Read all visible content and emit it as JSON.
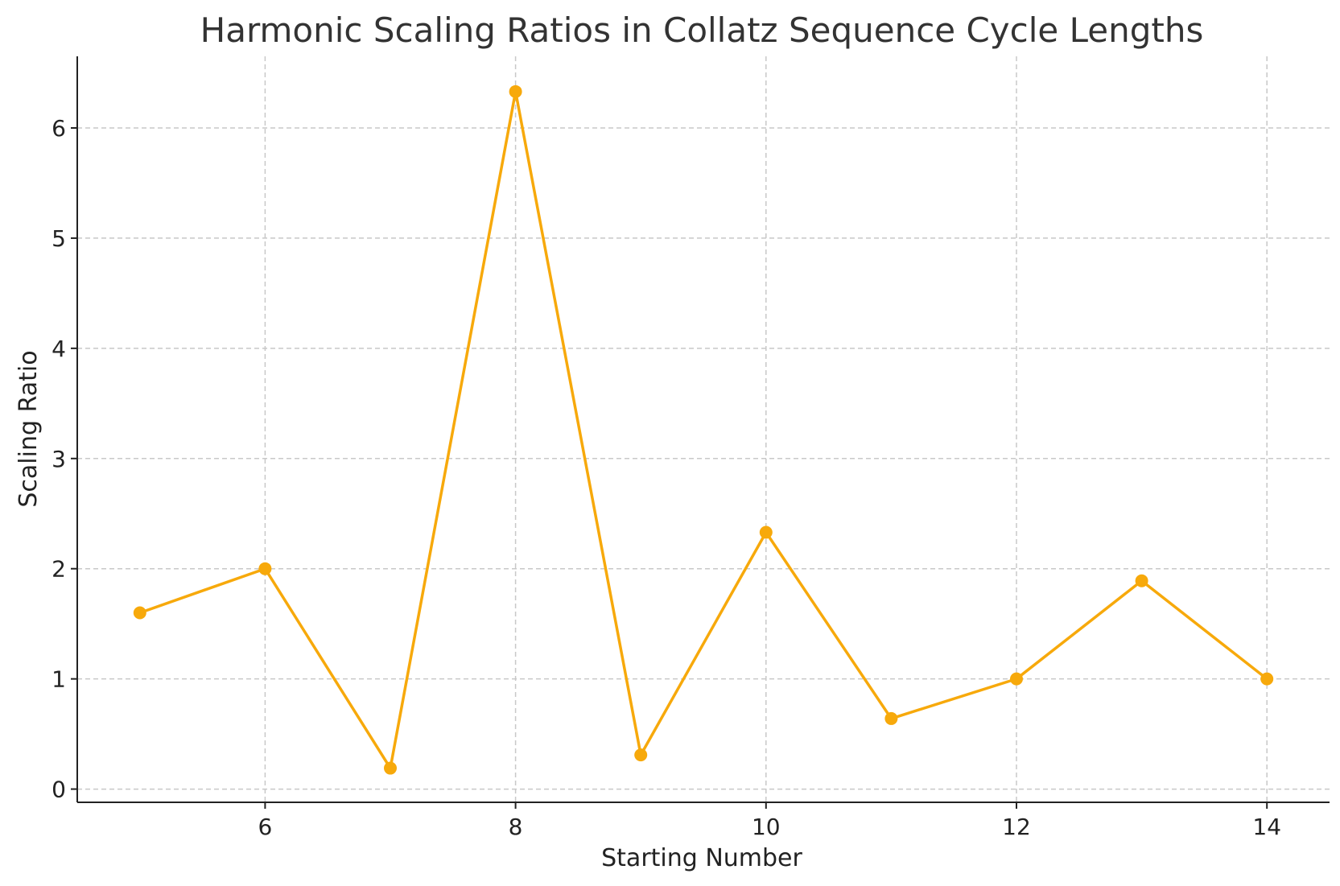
{
  "chart_data": {
    "type": "line",
    "title": "Harmonic Scaling Ratios in Collatz Sequence Cycle Lengths",
    "xlabel": "Starting Number",
    "ylabel": "Scaling Ratio",
    "x": [
      5,
      6,
      7,
      8,
      9,
      10,
      11,
      12,
      13,
      14
    ],
    "series": [
      {
        "values": [
          1.6,
          2.0,
          0.19,
          6.33,
          0.31,
          2.33,
          0.64,
          1.0,
          1.89,
          1.0
        ],
        "color": "#f7a90b"
      }
    ],
    "xlim": [
      4.5,
      14.5
    ],
    "ylim": [
      -0.12,
      6.65
    ],
    "xticks": [
      6,
      8,
      10,
      12,
      14
    ],
    "yticks": [
      0,
      1,
      2,
      3,
      4,
      5,
      6
    ],
    "grid": true,
    "legend": "none"
  }
}
